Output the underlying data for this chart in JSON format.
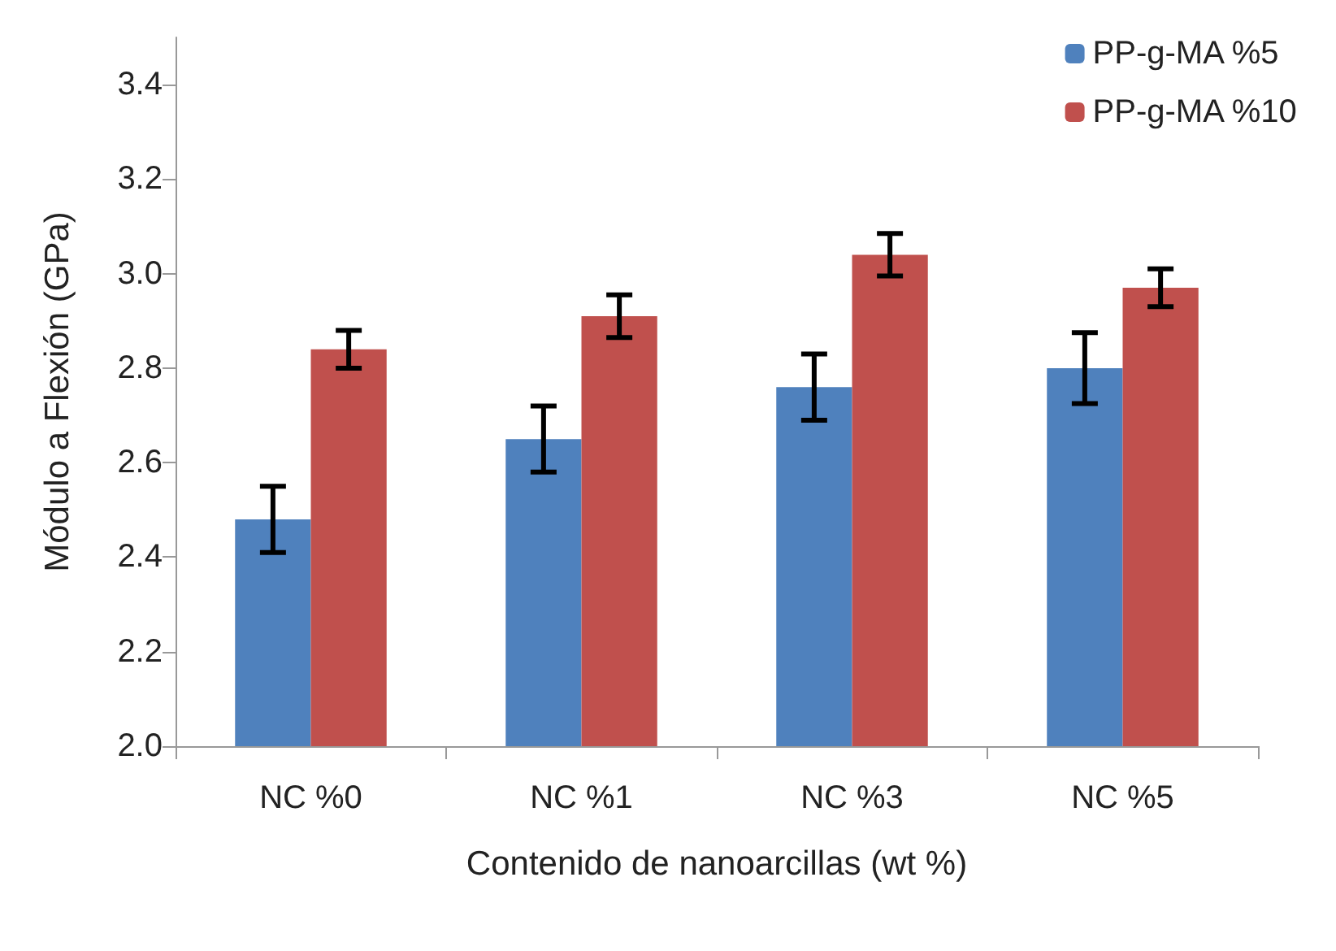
{
  "chart_data": {
    "type": "bar",
    "xlabel": "Contenido de nanoarcillas (wt %)",
    "ylabel": "Módulo a Flexión (GPa)",
    "categories": [
      "NC %0",
      "NC %1",
      "NC %3",
      "NC %5"
    ],
    "series": [
      {
        "name": "PP-g-MA %5",
        "color": "#4f81bd",
        "values": [
          2.48,
          2.65,
          2.76,
          2.8
        ],
        "errors": [
          0.07,
          0.07,
          0.07,
          0.075
        ]
      },
      {
        "name": "PP-g-MA %10",
        "color": "#c0504d",
        "values": [
          2.84,
          2.91,
          3.04,
          2.97
        ],
        "errors": [
          0.04,
          0.045,
          0.045,
          0.04
        ]
      }
    ],
    "ylim": [
      2.0,
      3.5
    ],
    "yticks": [
      {
        "value": 2,
        "label": "2.0"
      },
      2.2,
      2.4,
      2.6,
      2.8,
      {
        "value": 3,
        "label": "3.0"
      },
      3.2,
      3.4
    ],
    "grid": false,
    "legend": "top right"
  }
}
